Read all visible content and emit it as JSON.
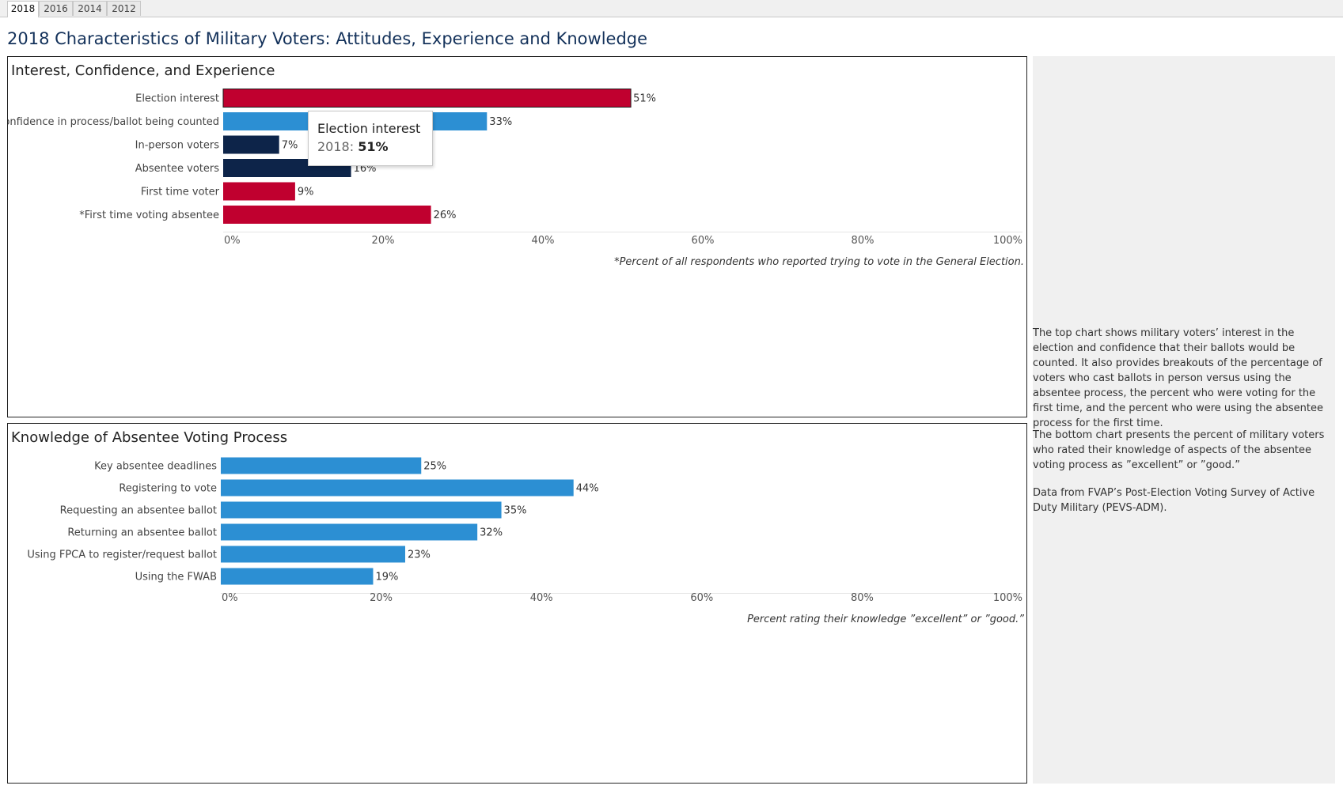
{
  "tabs": [
    {
      "label": "2018",
      "active": true
    },
    {
      "label": "2016",
      "active": false
    },
    {
      "label": "2014",
      "active": false
    },
    {
      "label": "2012",
      "active": false
    }
  ],
  "page_title": "2018 Characteristics of Military Voters: Attitudes, Experience and Knowledge",
  "colors": {
    "red": "#c0002f",
    "blue": "#2c8fd3",
    "navy": "#0d2449"
  },
  "chart_data": [
    {
      "type": "bar",
      "orientation": "horizontal",
      "title": "Interest, Confidence, and Experience",
      "categories": [
        "Election interest",
        "Confidence in process/ballot being counted",
        "In-person voters",
        "Absentee voters",
        "First time voter",
        "*First time voting absentee"
      ],
      "values": [
        51,
        33,
        7,
        16,
        9,
        26
      ],
      "value_labels": [
        "51%",
        "33%",
        "7%",
        "16%",
        "9%",
        "26%"
      ],
      "bar_colors": [
        "#c0002f",
        "#2c8fd3",
        "#0d2449",
        "#0d2449",
        "#c0002f",
        "#c0002f"
      ],
      "xlim": [
        0,
        100
      ],
      "ticks": [
        "0%",
        "20%",
        "40%",
        "60%",
        "80%",
        "100%"
      ],
      "note": "*Percent of all respondents who reported trying to vote in the General Election."
    },
    {
      "type": "bar",
      "orientation": "horizontal",
      "title": "Knowledge of Absentee Voting Process",
      "categories": [
        "Key absentee deadlines",
        "Registering to vote",
        "Requesting an absentee ballot",
        "Returning an absentee ballot",
        "Using FPCA to register/request ballot",
        "Using the FWAB"
      ],
      "values": [
        25,
        44,
        35,
        32,
        23,
        19
      ],
      "value_labels": [
        "25%",
        "44%",
        "35%",
        "32%",
        "23%",
        "19%"
      ],
      "bar_colors": [
        "#2c8fd3",
        "#2c8fd3",
        "#2c8fd3",
        "#2c8fd3",
        "#2c8fd3",
        "#2c8fd3"
      ],
      "xlim": [
        0,
        100
      ],
      "ticks": [
        "0%",
        "20%",
        "40%",
        "60%",
        "80%",
        "100%"
      ],
      "note": "Percent rating their knowledge ”excellent” or ”good.”"
    }
  ],
  "tooltip": {
    "title": "Election interest",
    "year": "2018:",
    "value": "51%"
  },
  "side_panel": {
    "p1": "The top chart shows military voters’ interest in the election and confidence that their ballots would be counted. It also provides breakouts of the percentage of voters who cast ballots in person versus using the absentee process, the percent who were voting for the first time, and the percent who were using the absentee process for the first time.",
    "p2": "The bottom chart presents the percent of military voters who rated their knowledge of aspects of the absentee voting process as ”excellent” or ”good.”",
    "p3": "Data from FVAP’s Post-Election Voting Survey of Active Duty Military (PEVS-ADM)."
  }
}
